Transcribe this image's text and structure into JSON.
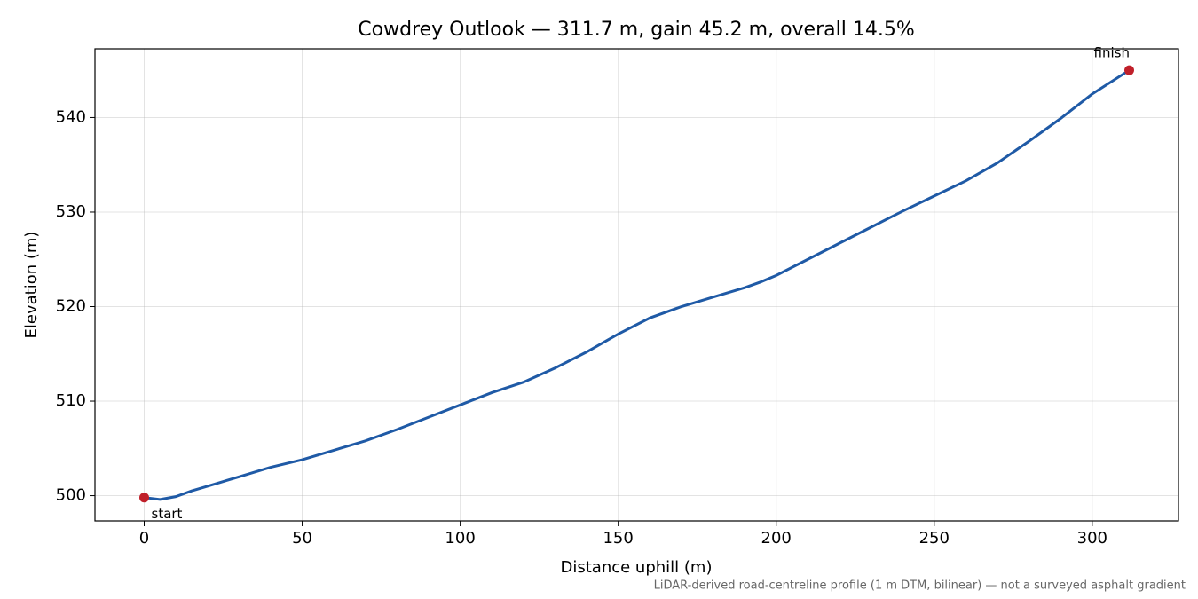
{
  "chart_data": {
    "type": "line",
    "title": "Cowdrey Outlook — 311.7 m, gain 45.2 m, overall 14.5%",
    "x_label": "Distance uphill (m)",
    "y_label": "Elevation (m)",
    "footnote": "LiDAR-derived road-centreline profile (1 m DTM, bilinear) — not a surveyed asphalt gradient",
    "x": [
      0,
      5,
      10,
      15,
      20,
      30,
      40,
      50,
      60,
      70,
      80,
      90,
      100,
      110,
      120,
      130,
      140,
      150,
      160,
      170,
      180,
      190,
      195,
      200,
      210,
      220,
      230,
      240,
      250,
      260,
      270,
      280,
      290,
      300,
      311.7
    ],
    "series": [
      {
        "name": "Elevation",
        "color": "#1f5aa6",
        "values": [
          499.8,
          499.6,
          499.9,
          500.5,
          501.0,
          502.0,
          503.0,
          503.8,
          504.8,
          505.8,
          507.0,
          508.3,
          509.6,
          510.9,
          512.0,
          513.5,
          515.2,
          517.1,
          518.8,
          520.0,
          521.0,
          522.0,
          522.6,
          523.3,
          525.0,
          526.7,
          528.4,
          530.1,
          531.7,
          533.3,
          535.2,
          537.5,
          539.9,
          542.5,
          545.0
        ]
      }
    ],
    "markers": {
      "x": [
        0,
        311.7
      ],
      "values": [
        499.8,
        545.0
      ],
      "labels": [
        "start",
        "finish"
      ],
      "color": "#c0202a"
    },
    "xlim": [
      -15.585,
      327.285
    ],
    "xticks": [
      0,
      50,
      100,
      150,
      200,
      250,
      300
    ],
    "ylim": [
      497.33,
      547.27
    ],
    "yticks": [
      500,
      510,
      520,
      530,
      540
    ],
    "grid": true
  }
}
